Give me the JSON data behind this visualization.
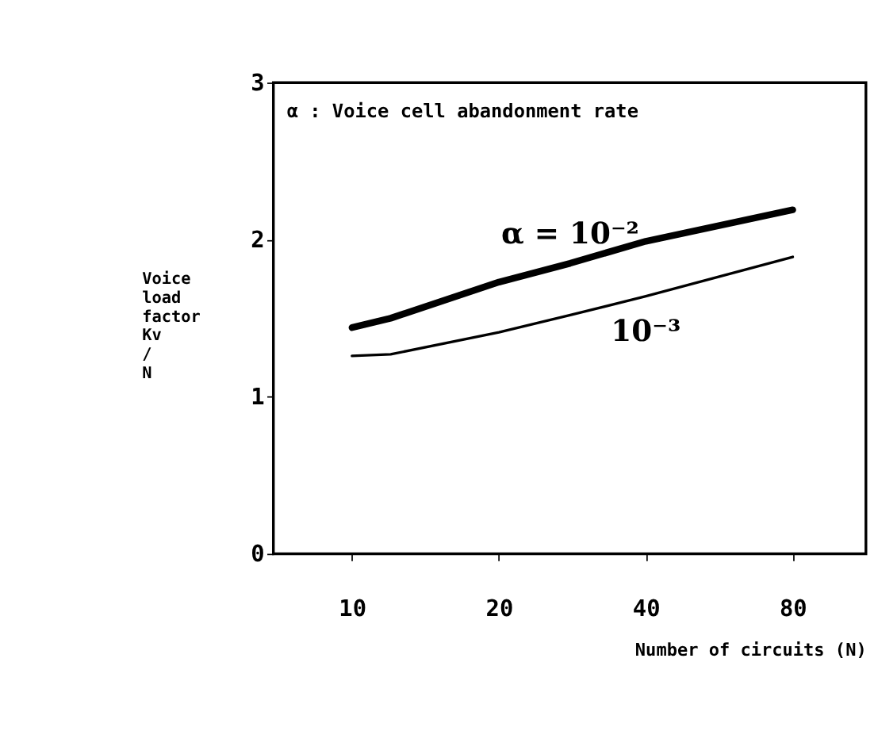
{
  "chart_data": {
    "type": "line",
    "xlabel": "Number of circuits (N)",
    "ylabel": "Voice\nload\nfactor\nKv\n/\nN",
    "annotations": [
      "α : Voice cell abandonment rate"
    ],
    "series": [
      {
        "name": "α = 10⁻²",
        "color": "#000000",
        "x": [
          10,
          12,
          20,
          28,
          40,
          80
        ],
        "values": [
          1.44,
          1.5,
          1.73,
          1.85,
          1.99,
          2.19
        ]
      },
      {
        "name": "10⁻³",
        "color": "#000000",
        "x": [
          10,
          12,
          20,
          28,
          40,
          80
        ],
        "values": [
          1.26,
          1.27,
          1.41,
          1.52,
          1.64,
          1.89
        ]
      }
    ],
    "log": "x",
    "xlim": [
      6.9,
      113
    ],
    "xticks": [
      10,
      20,
      40,
      80
    ],
    "ylim": [
      0,
      3
    ],
    "yticks": [
      0,
      1,
      2,
      3
    ],
    "grid": false,
    "marker": "none",
    "line_style": "solid"
  }
}
